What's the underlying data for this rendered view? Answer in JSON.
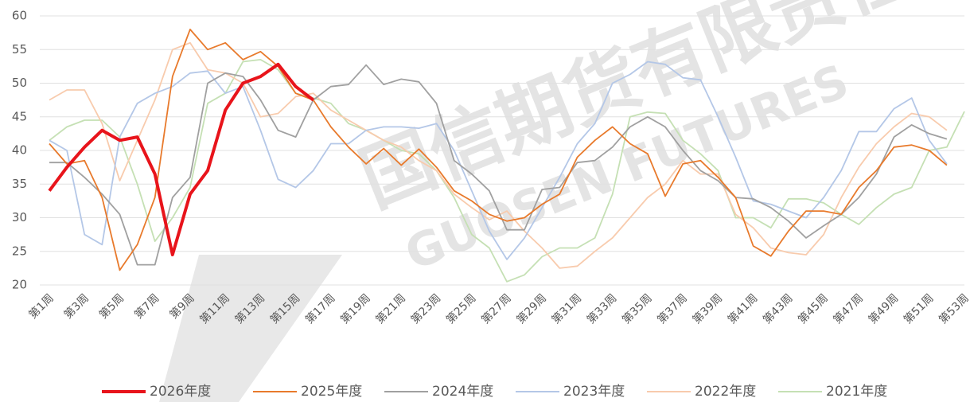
{
  "chart_data": {
    "type": "line",
    "watermark": [
      "国信期货有限责任",
      "GUOSEN FUTURES"
    ],
    "categories": [
      "第1周",
      null,
      "第3周",
      null,
      "第5周",
      null,
      "第7周",
      null,
      "第9周",
      null,
      "第11周",
      null,
      "第13周",
      null,
      "第15周",
      null,
      "第17周",
      null,
      "第19周",
      null,
      "第21周",
      null,
      "第23周",
      null,
      "第25周",
      null,
      "第27周",
      null,
      "第29周",
      null,
      "第31周",
      null,
      "第33周",
      null,
      "第35周",
      null,
      "第37周",
      null,
      "第39周",
      null,
      "第41周",
      null,
      "第43周",
      null,
      "第45周",
      null,
      "第47周",
      null,
      "第49周",
      null,
      "第51周",
      null,
      "第53周"
    ],
    "ylim": [
      20,
      60
    ],
    "yticks": [
      20,
      25,
      30,
      35,
      40,
      45,
      50,
      55,
      60
    ],
    "grid": true,
    "legend": "bottom",
    "series": [
      {
        "name": "2026年度",
        "color": "#e8141b",
        "values": [
          34,
          37.5,
          40.5,
          43,
          41.5,
          42,
          36.5,
          24.5,
          33.5,
          37,
          46,
          50,
          51,
          52.8,
          49.5,
          47.5,
          null,
          null,
          null,
          null,
          null,
          null,
          null,
          null,
          null,
          null,
          null,
          null,
          null,
          null,
          null,
          null,
          null,
          null,
          null,
          null,
          null,
          null,
          null,
          null,
          null,
          null,
          null,
          null,
          null,
          null,
          null,
          null,
          null,
          null,
          null,
          null,
          null
        ]
      },
      {
        "name": "2025年度",
        "color": "#e87a2c",
        "values": [
          41,
          38,
          38.5,
          33,
          22.2,
          26,
          33,
          51,
          58,
          55,
          56,
          53.5,
          54.7,
          52.5,
          48.5,
          47.5,
          43.5,
          40.5,
          38,
          40.3,
          37.8,
          40.2,
          37.5,
          34,
          32.5,
          30.5,
          29.5,
          30,
          32,
          33.5,
          39,
          41.5,
          43.5,
          41,
          39.5,
          33.2,
          38,
          38.5,
          36,
          33,
          25.8,
          24.3,
          28,
          31,
          31,
          30.5,
          34.5,
          37,
          40.5,
          40.8,
          40,
          37.8,
          null
        ]
      },
      {
        "name": "2024年度",
        "color": "#a0a0a0",
        "values": [
          38.2,
          38.2,
          36,
          33.5,
          30.5,
          23,
          23,
          33,
          36,
          50,
          51.5,
          51,
          47.5,
          43,
          42,
          47.5,
          49.5,
          49.8,
          52.7,
          49.8,
          50.6,
          50.2,
          47,
          38.5,
          36.5,
          34,
          28.2,
          28.2,
          34.2,
          34.5,
          38.2,
          38.5,
          40.5,
          43.5,
          45,
          43.5,
          40,
          37,
          35.5,
          33,
          32.8,
          31.5,
          29.5,
          27,
          28.8,
          30.5,
          33,
          36.5,
          42,
          43.8,
          42.5,
          41.7,
          null
        ]
      },
      {
        "name": "2023年度",
        "color": "#b4c7e7",
        "values": [
          41.5,
          40,
          27.5,
          26,
          42,
          47,
          48.5,
          49.5,
          51.5,
          51.8,
          48.5,
          49.5,
          43,
          35.7,
          34.5,
          37,
          41,
          41,
          43,
          43.5,
          43.5,
          43.3,
          44,
          40,
          34,
          28,
          23.8,
          27,
          31.5,
          36,
          41,
          44,
          50,
          51.3,
          53.2,
          52.8,
          50.8,
          50.5,
          45,
          39,
          32.5,
          32,
          31,
          30,
          33,
          37,
          42.8,
          42.8,
          46.2,
          47.8,
          41.5,
          38,
          null
        ]
      },
      {
        "name": "2022年度",
        "color": "#f8cbad",
        "values": [
          47.5,
          49,
          49,
          44,
          35.5,
          41.5,
          47.5,
          55,
          56,
          52,
          51.5,
          50,
          45,
          45.5,
          48,
          48.5,
          46,
          44.5,
          43,
          41.5,
          40.5,
          38.5,
          37,
          33.5,
          31.5,
          29.7,
          31,
          28,
          25.5,
          22.5,
          22.8,
          25,
          27,
          30,
          33,
          35,
          38.5,
          36.5,
          36.5,
          30.5,
          28.5,
          25.5,
          24.8,
          24.5,
          27.5,
          33,
          37.5,
          41,
          43.5,
          45.5,
          45,
          43,
          null
        ]
      },
      {
        "name": "2021年度",
        "color": "#c5e0b4",
        "values": [
          41.5,
          43.5,
          44.5,
          44.5,
          42,
          35,
          26.5,
          30,
          34.5,
          47,
          48.5,
          53.2,
          53.5,
          52,
          48.5,
          47.8,
          47,
          44,
          43,
          41.5,
          40,
          39.5,
          37,
          33,
          27.5,
          25.5,
          20.5,
          21.5,
          24.2,
          25.5,
          25.5,
          27,
          33.5,
          45,
          45.7,
          45.5,
          41.5,
          39.5,
          37,
          30,
          30,
          28.5,
          32.8,
          32.8,
          32.2,
          30.5,
          29,
          31.5,
          33.5,
          34.5,
          40,
          40.5,
          45.8
        ]
      }
    ]
  }
}
